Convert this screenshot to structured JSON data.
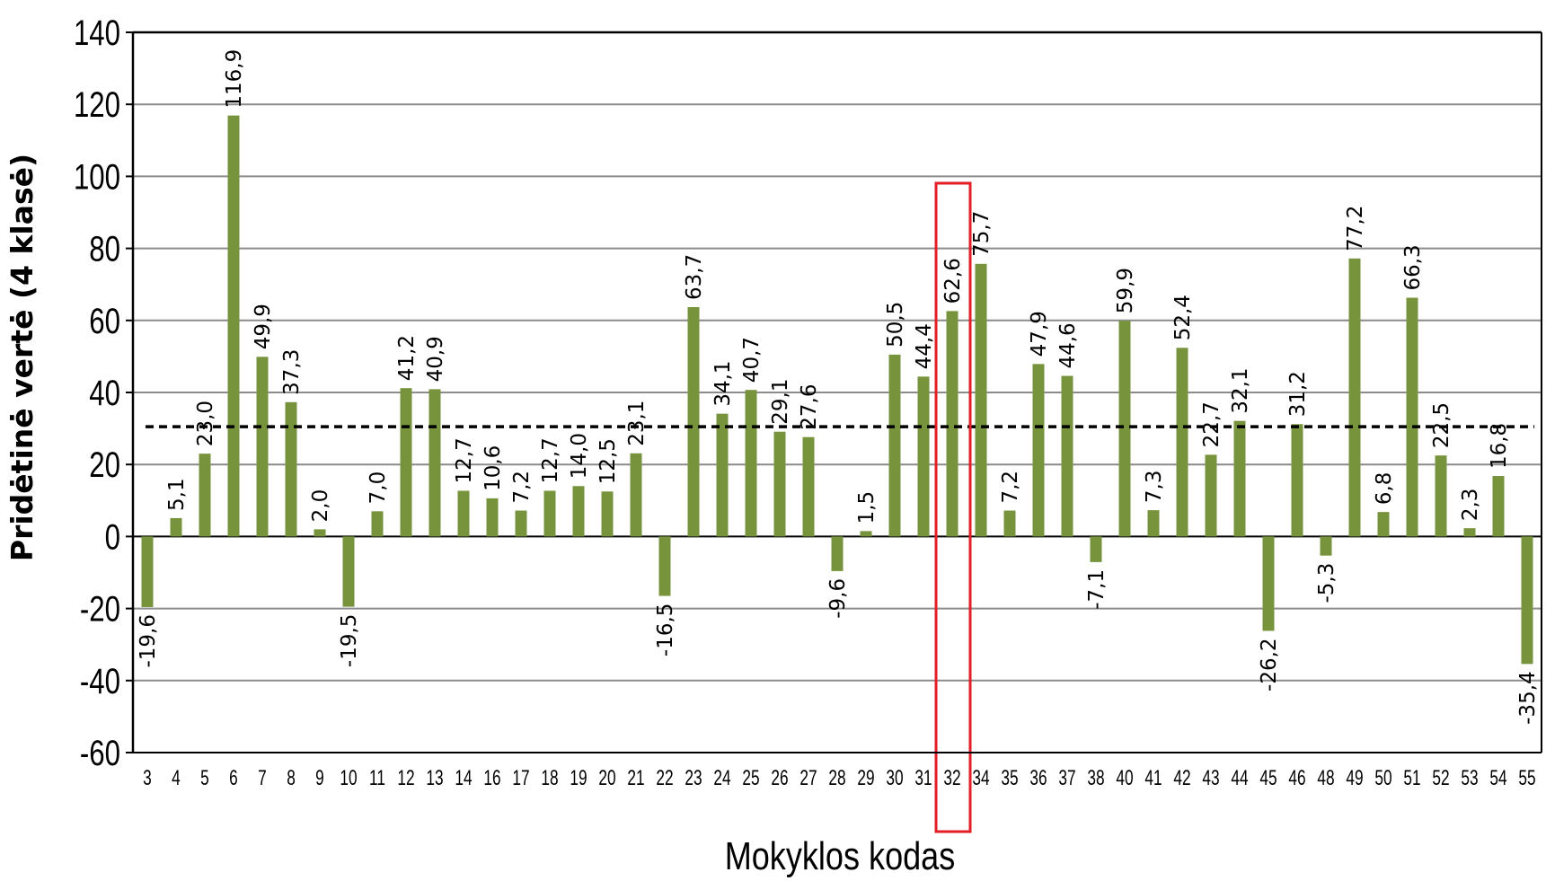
{
  "chart_data": {
    "type": "bar",
    "title": "",
    "xlabel": "Mokyklos kodas",
    "ylabel": "Pridėtinė vertė (4 klasė)",
    "ylim": [
      -60,
      140
    ],
    "yticks": [
      "140",
      "120",
      "100",
      "80",
      "60",
      "40",
      "20",
      "0",
      "-20",
      "-40",
      "-60"
    ],
    "ytick_values": [
      140,
      120,
      100,
      80,
      60,
      40,
      20,
      0,
      -20,
      -40,
      -60
    ],
    "grid": true,
    "reference_line": 30.5,
    "bar_color": "#77933c",
    "highlight_color": "#e31e24",
    "highlighted_category": "32",
    "categories": [
      "3",
      "4",
      "5",
      "6",
      "7",
      "8",
      "9",
      "10",
      "11",
      "12",
      "13",
      "14",
      "16",
      "17",
      "18",
      "19",
      "20",
      "21",
      "22",
      "23",
      "24",
      "25",
      "26",
      "27",
      "28",
      "29",
      "30",
      "31",
      "32",
      "34",
      "35",
      "36",
      "37",
      "38",
      "40",
      "41",
      "42",
      "43",
      "44",
      "45",
      "46",
      "48",
      "49",
      "50",
      "51",
      "52",
      "53",
      "54",
      "55"
    ],
    "values": [
      -19.6,
      5.1,
      23.0,
      116.9,
      49.9,
      37.3,
      2.0,
      -19.5,
      7.0,
      41.2,
      40.9,
      12.7,
      10.6,
      7.2,
      12.7,
      14.0,
      12.5,
      23.1,
      -16.5,
      63.7,
      34.1,
      40.7,
      29.1,
      27.6,
      -9.6,
      1.5,
      50.5,
      44.4,
      62.6,
      75.7,
      7.2,
      47.9,
      44.6,
      -7.1,
      59.9,
      7.3,
      52.4,
      22.7,
      32.1,
      -26.2,
      31.2,
      -5.3,
      77.2,
      6.8,
      66.3,
      22.5,
      2.3,
      16.8,
      -35.4
    ],
    "labels": [
      "-19,6",
      "5,1",
      "23,0",
      "116,9",
      "49,9",
      "37,3",
      "2,0",
      "-19,5",
      "7,0",
      "41,2",
      "40,9",
      "12,7",
      "10,6",
      "7,2",
      "12,7",
      "14,0",
      "12,5",
      "23,1",
      "-16,5",
      "63,7",
      "34,1",
      "40,7",
      "29,1",
      "27,6",
      "-9,6",
      "1,5",
      "50,5",
      "44,4",
      "62,6",
      "75,7",
      "7,2",
      "47,9",
      "44,6",
      "-7,1",
      "59,9",
      "7,3",
      "52,4",
      "22,7",
      "32,1",
      "-26,2",
      "31,2",
      "-5,3",
      "77,2",
      "6,8",
      "66,3",
      "22,5",
      "2,3",
      "16,8",
      "-35,4"
    ]
  }
}
